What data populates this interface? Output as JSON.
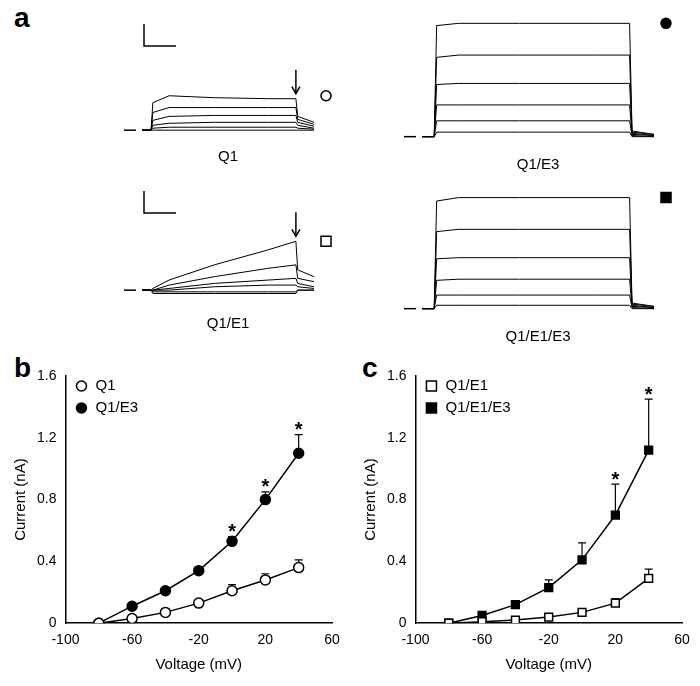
{
  "panel_labels": [
    "a",
    "b",
    "c"
  ],
  "chart_data": [
    {
      "type": "line",
      "title": "Q1",
      "x": [
        0,
        10,
        12,
        30,
        80,
        140,
        170,
        172,
        190
      ],
      "xlim": [
        0,
        190
      ],
      "ylim": [
        -0.1,
        1.1
      ],
      "tick_labels": false,
      "grid": false,
      "marker": "open_circle",
      "series": [
        {
          "color": "#000000",
          "values": [
            0,
            0,
            0.28,
            0.35,
            0.33,
            0.32,
            0.32,
            0.14,
            0.08
          ]
        },
        {
          "color": "#000000",
          "values": [
            0,
            0,
            0.18,
            0.23,
            0.23,
            0.23,
            0.23,
            0.11,
            0.06
          ]
        },
        {
          "color": "#000000",
          "values": [
            0,
            0,
            0.1,
            0.14,
            0.15,
            0.15,
            0.15,
            0.08,
            0.04
          ]
        },
        {
          "color": "#000000",
          "values": [
            0,
            0,
            0.05,
            0.07,
            0.08,
            0.08,
            0.08,
            0.05,
            0.02
          ]
        },
        {
          "color": "#000000",
          "values": [
            0,
            0,
            0.02,
            0.03,
            0.03,
            0.03,
            0.03,
            0.02,
            0.01
          ]
        },
        {
          "color": "#000000",
          "values": [
            0,
            0,
            0,
            0,
            0,
            0,
            0,
            0,
            0
          ]
        }
      ]
    },
    {
      "type": "line",
      "title": "Q1/E3",
      "x": [
        0,
        10,
        12,
        30,
        80,
        140,
        170,
        172,
        190
      ],
      "xlim": [
        0,
        190
      ],
      "ylim": [
        -0.1,
        1.1
      ],
      "tick_labels": false,
      "grid": false,
      "marker": "filled_circle",
      "series": [
        {
          "color": "#000000",
          "values": [
            0,
            0,
            0.98,
            1.0,
            1.0,
            1.0,
            1.0,
            0.05,
            0.02
          ]
        },
        {
          "color": "#000000",
          "values": [
            0,
            0,
            0.7,
            0.72,
            0.72,
            0.72,
            0.72,
            0.04,
            0.02
          ]
        },
        {
          "color": "#000000",
          "values": [
            0,
            0,
            0.46,
            0.47,
            0.47,
            0.47,
            0.47,
            0.03,
            0.01
          ]
        },
        {
          "color": "#000000",
          "values": [
            0,
            0,
            0.28,
            0.28,
            0.28,
            0.28,
            0.28,
            0.02,
            0.01
          ]
        },
        {
          "color": "#000000",
          "values": [
            0,
            0,
            0.14,
            0.14,
            0.14,
            0.14,
            0.14,
            0.01,
            0
          ]
        },
        {
          "color": "#000000",
          "values": [
            0,
            0,
            0.04,
            0.04,
            0.04,
            0.04,
            0.04,
            0,
            0
          ]
        }
      ]
    },
    {
      "type": "line",
      "title": "Q1/E1",
      "x": [
        0,
        10,
        12,
        30,
        80,
        140,
        170,
        172,
        190
      ],
      "xlim": [
        0,
        190
      ],
      "ylim": [
        -0.1,
        0.6
      ],
      "tick_labels": false,
      "grid": false,
      "marker": "open_square",
      "series": [
        {
          "color": "#000000",
          "values": [
            0,
            0,
            0.01,
            0.06,
            0.15,
            0.24,
            0.29,
            0.12,
            0.08
          ]
        },
        {
          "color": "#000000",
          "values": [
            0,
            0,
            0,
            0.03,
            0.08,
            0.13,
            0.15,
            0.07,
            0.05
          ]
        },
        {
          "color": "#000000",
          "values": [
            0,
            0,
            0,
            0.01,
            0.04,
            0.06,
            0.07,
            0.04,
            0.02
          ]
        },
        {
          "color": "#000000",
          "values": [
            0,
            0,
            0,
            0,
            0.02,
            0.03,
            0.03,
            0.02,
            0.01
          ]
        },
        {
          "color": "#000000",
          "values": [
            0,
            0,
            -0.01,
            -0.01,
            -0.01,
            -0.01,
            -0.01,
            0,
            0
          ]
        },
        {
          "color": "#000000",
          "values": [
            0,
            0,
            -0.02,
            -0.02,
            -0.02,
            -0.02,
            -0.02,
            0,
            0
          ]
        }
      ]
    },
    {
      "type": "line",
      "title": "Q1/E1/E3",
      "x": [
        0,
        10,
        12,
        30,
        80,
        140,
        170,
        172,
        190
      ],
      "xlim": [
        0,
        190
      ],
      "ylim": [
        -0.1,
        1.1
      ],
      "tick_labels": false,
      "grid": false,
      "marker": "filled_square",
      "series": [
        {
          "color": "#000000",
          "values": [
            0,
            0,
            0.95,
            0.98,
            0.98,
            0.98,
            0.98,
            0.05,
            0.02
          ]
        },
        {
          "color": "#000000",
          "values": [
            0,
            0,
            0.68,
            0.7,
            0.7,
            0.7,
            0.7,
            0.04,
            0.02
          ]
        },
        {
          "color": "#000000",
          "values": [
            0,
            0,
            0.44,
            0.45,
            0.45,
            0.45,
            0.45,
            0.03,
            0.01
          ]
        },
        {
          "color": "#000000",
          "values": [
            0,
            0,
            0.25,
            0.26,
            0.26,
            0.26,
            0.26,
            0.02,
            0.01
          ]
        },
        {
          "color": "#000000",
          "values": [
            0,
            0,
            0.12,
            0.12,
            0.12,
            0.12,
            0.12,
            0.01,
            0
          ]
        },
        {
          "color": "#000000",
          "values": [
            0,
            0,
            0.03,
            0.03,
            0.03,
            0.03,
            0.03,
            0,
            0
          ]
        }
      ]
    },
    {
      "type": "line",
      "x": [
        -80,
        -60,
        -40,
        -20,
        0,
        20,
        40
      ],
      "x_label": "Voltage (mV)",
      "y_label": "Current (nA)",
      "xlim": [
        -100,
        60
      ],
      "xticks": [
        -100,
        -60,
        -20,
        20,
        60
      ],
      "ylim": [
        0,
        1.6
      ],
      "yticks": [
        0,
        0.4,
        0.8,
        1.2,
        1.6
      ],
      "grid": false,
      "legend": "upper left",
      "series": [
        {
          "name": "Q1",
          "color": "#000000",
          "marker": "open_circle",
          "values": [
            0,
            0.03,
            0.07,
            0.13,
            0.21,
            0.28,
            0.36
          ],
          "errors": [
            0,
            0.005,
            0.01,
            0.015,
            0.04,
            0.04,
            0.05
          ]
        },
        {
          "name": "Q1/E3",
          "color": "#000000",
          "marker": "filled_circle",
          "values": [
            0,
            0.11,
            0.21,
            0.34,
            0.53,
            0.8,
            1.1
          ],
          "errors": [
            0,
            0.01,
            0.015,
            0.02,
            0.03,
            0.05,
            0.12
          ]
        }
      ],
      "annotations": [
        {
          "x": 0,
          "text": "*"
        },
        {
          "x": 20,
          "text": "*"
        },
        {
          "x": 40,
          "text": "*"
        }
      ]
    },
    {
      "type": "line",
      "x": [
        -80,
        -60,
        -40,
        -20,
        0,
        20,
        40
      ],
      "x_label": "Voltage (mV)",
      "y_label": "Current (nA)",
      "xlim": [
        -100,
        60
      ],
      "xticks": [
        -100,
        -60,
        -20,
        20,
        60
      ],
      "ylim": [
        0,
        1.6
      ],
      "yticks": [
        0,
        0.4,
        0.8,
        1.2,
        1.6
      ],
      "grid": false,
      "legend": "upper left",
      "series": [
        {
          "name": "Q1/E1",
          "color": "#000000",
          "marker": "open_square",
          "values": [
            0,
            0.01,
            0.02,
            0.04,
            0.07,
            0.13,
            0.29
          ],
          "errors": [
            0,
            0.005,
            0.01,
            0.01,
            0.02,
            0.03,
            0.06
          ]
        },
        {
          "name": "Q1/E1/E3",
          "color": "#000000",
          "marker": "filled_square",
          "values": [
            0,
            0.05,
            0.12,
            0.23,
            0.41,
            0.7,
            1.12
          ],
          "errors": [
            0,
            0.01,
            0.02,
            0.05,
            0.11,
            0.2,
            0.33
          ]
        }
      ],
      "annotations": [
        {
          "x": 20,
          "text": "*"
        },
        {
          "x": 40,
          "text": "*"
        }
      ]
    }
  ]
}
